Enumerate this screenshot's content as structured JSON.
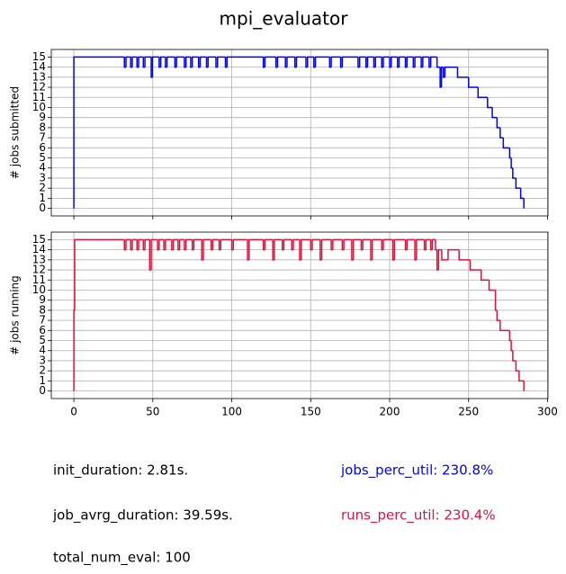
{
  "title": "mpi_evaluator",
  "chart_data": [
    {
      "type": "line",
      "ylabel": "# jobs submitted",
      "color": "#0000ff",
      "x": [
        0,
        0,
        32,
        33,
        36,
        37,
        40,
        41,
        44,
        45,
        49,
        49.8,
        54,
        55,
        58,
        59,
        64,
        65,
        70,
        71,
        74,
        75,
        79,
        80,
        84,
        85,
        90,
        91,
        96,
        97,
        120,
        121,
        128,
        129,
        134,
        135,
        140,
        141,
        147,
        148,
        152,
        153,
        162,
        163,
        169,
        170,
        180,
        181,
        185,
        186,
        190,
        191,
        195,
        196,
        200,
        201,
        205,
        206,
        210,
        211,
        215,
        216,
        220,
        221,
        225,
        226,
        230,
        232,
        232.8,
        234,
        235,
        243,
        250,
        256,
        262,
        265,
        268,
        270,
        272,
        276,
        277,
        278,
        280,
        283,
        285
      ],
      "values": [
        0,
        15,
        14,
        15,
        14,
        15,
        14,
        15,
        14,
        15,
        13,
        15,
        14,
        15,
        14,
        15,
        14,
        15,
        14,
        15,
        14,
        15,
        14,
        15,
        14,
        15,
        14,
        15,
        14,
        15,
        14,
        15,
        14,
        15,
        14,
        15,
        14,
        15,
        14,
        15,
        14,
        15,
        14,
        15,
        14,
        15,
        14,
        15,
        14,
        15,
        14,
        15,
        14,
        15,
        14,
        15,
        14,
        15,
        14,
        15,
        14,
        15,
        14,
        15,
        14,
        15,
        14,
        12,
        14,
        13,
        14,
        13,
        12,
        11,
        10,
        9,
        8,
        7,
        6,
        5,
        4,
        3,
        2,
        1,
        0
      ],
      "xlim": [
        -14.3,
        300.3
      ],
      "ylim": [
        -0.75,
        15.75
      ],
      "yticks": [
        0,
        1,
        2,
        3,
        4,
        5,
        6,
        7,
        8,
        9,
        10,
        11,
        12,
        13,
        14,
        15
      ],
      "grid": true
    },
    {
      "type": "line",
      "ylabel": "# jobs running",
      "color": "#dc143c",
      "x": [
        0,
        0,
        0.5,
        32,
        33,
        36,
        37,
        40,
        41,
        44,
        45,
        48,
        49,
        53,
        54,
        57,
        58,
        62,
        63,
        66,
        67,
        70,
        71,
        75,
        76,
        81,
        82,
        87,
        88,
        92,
        93,
        100,
        101,
        110,
        111,
        120,
        121,
        126,
        127,
        132,
        133,
        138,
        139,
        143,
        144,
        150,
        151,
        156,
        157,
        163,
        164,
        170,
        171,
        176,
        177,
        182,
        183,
        188,
        189,
        195,
        196,
        202,
        203,
        210,
        211,
        216,
        217,
        222,
        223,
        226,
        227,
        229,
        230,
        231,
        233,
        237,
        244,
        251,
        258,
        263,
        267,
        268,
        270,
        276,
        277,
        278,
        280,
        282,
        285
      ],
      "values": [
        0,
        8,
        15,
        14,
        15,
        14,
        15,
        14,
        15,
        14,
        15,
        12,
        15,
        14,
        15,
        14,
        15,
        14,
        15,
        14,
        15,
        14,
        15,
        14,
        15,
        13,
        15,
        14,
        15,
        14,
        15,
        14,
        15,
        13,
        15,
        14,
        15,
        13,
        15,
        14,
        15,
        14,
        15,
        13,
        15,
        14,
        15,
        13,
        15,
        14,
        15,
        14,
        15,
        13,
        15,
        14,
        15,
        13,
        15,
        14,
        15,
        13,
        15,
        14,
        15,
        13,
        15,
        14,
        15,
        14,
        15,
        14,
        12,
        14,
        13,
        14,
        13,
        12,
        11,
        10,
        8,
        7,
        6,
        5,
        4,
        3,
        2,
        1,
        0
      ],
      "xlim": [
        -14.3,
        300.3
      ],
      "ylim": [
        -0.75,
        15.75
      ],
      "xticks": [
        0,
        50,
        100,
        150,
        200,
        250,
        300
      ],
      "yticks": [
        0,
        1,
        2,
        3,
        4,
        5,
        6,
        7,
        8,
        9,
        10,
        11,
        12,
        13,
        14,
        15
      ],
      "grid": true
    }
  ],
  "annotations": [
    {
      "text": "init_duration: 2.81s.",
      "color": "#000000"
    },
    {
      "text": "jobs_perc_util: 230.8%",
      "color": "#0000ff"
    },
    {
      "text": "job_avrg_duration: 39.59s.",
      "color": "#000000"
    },
    {
      "text": "runs_perc_util: 230.4%",
      "color": "#dc143c"
    },
    {
      "text": "total_num_eval: 100",
      "color": "#000000"
    }
  ]
}
